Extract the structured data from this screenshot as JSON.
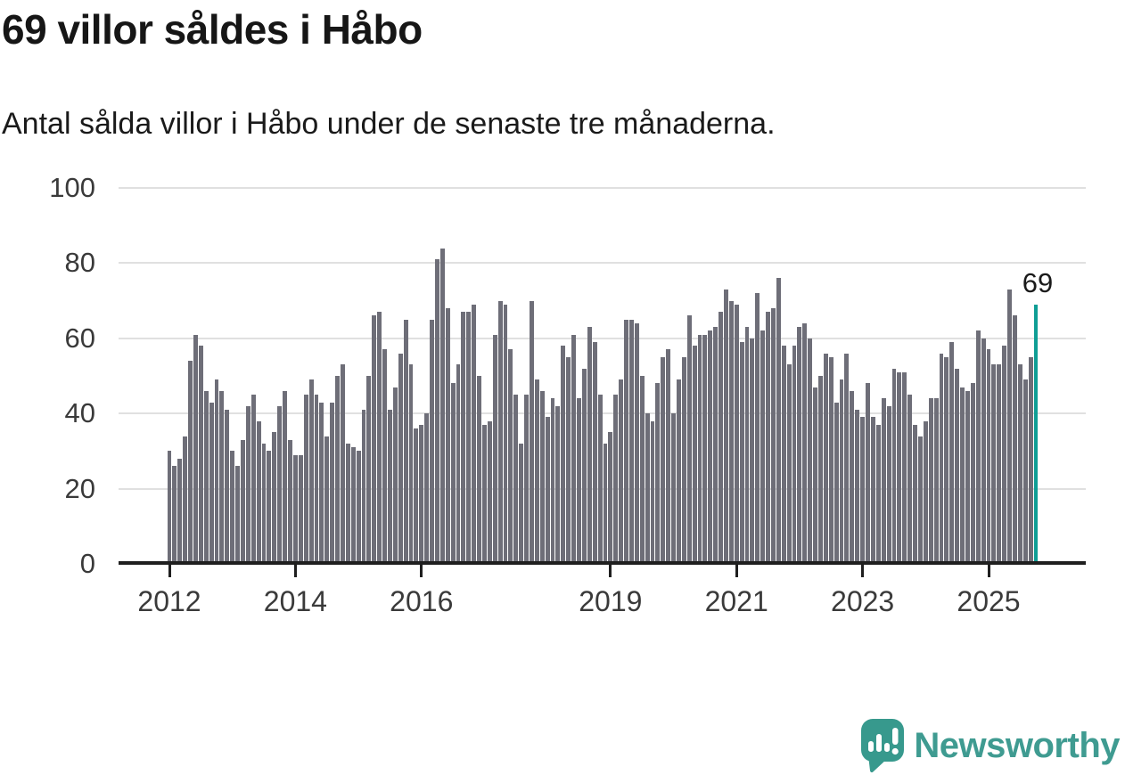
{
  "header": {
    "title": "69 villor såldes i Håbo",
    "subtitle": "Antal sålda villor i Håbo under de senaste tre månaderna."
  },
  "chart_data": {
    "type": "bar",
    "title": "69 villor såldes i Håbo",
    "subtitle": "Antal sålda villor i Håbo under de senaste tre månaderna.",
    "ylabel": "",
    "xlabel": "",
    "ylim": [
      0,
      100
    ],
    "grid": true,
    "y_ticks": [
      0,
      20,
      40,
      60,
      80,
      100
    ],
    "x_ticks": [
      {
        "label": "2012",
        "index": 0
      },
      {
        "label": "2014",
        "index": 24
      },
      {
        "label": "2016",
        "index": 48
      },
      {
        "label": "2019",
        "index": 84
      },
      {
        "label": "2021",
        "index": 108
      },
      {
        "label": "2023",
        "index": 132
      },
      {
        "label": "2025",
        "index": 156
      }
    ],
    "values": [
      30,
      26,
      28,
      34,
      54,
      61,
      58,
      46,
      43,
      49,
      46,
      41,
      30,
      26,
      33,
      42,
      45,
      38,
      32,
      30,
      35,
      42,
      46,
      33,
      29,
      29,
      45,
      49,
      45,
      43,
      34,
      43,
      50,
      53,
      32,
      31,
      30,
      41,
      50,
      66,
      67,
      57,
      41,
      47,
      56,
      65,
      53,
      36,
      37,
      40,
      65,
      81,
      84,
      68,
      48,
      53,
      67,
      67,
      69,
      50,
      37,
      38,
      61,
      70,
      69,
      57,
      45,
      32,
      45,
      70,
      49,
      46,
      39,
      44,
      42,
      58,
      55,
      61,
      44,
      52,
      63,
      59,
      45,
      32,
      35,
      45,
      49,
      65,
      65,
      64,
      50,
      40,
      38,
      48,
      55,
      57,
      40,
      49,
      55,
      66,
      58,
      61,
      61,
      62,
      63,
      67,
      73,
      70,
      69,
      59,
      63,
      60,
      72,
      62,
      67,
      68,
      76,
      58,
      53,
      58,
      63,
      64,
      60,
      47,
      50,
      56,
      55,
      43,
      49,
      56,
      46,
      41,
      39,
      48,
      39,
      37,
      44,
      42,
      52,
      51,
      51,
      45,
      37,
      34,
      38,
      44,
      44,
      56,
      55,
      59,
      52,
      47,
      46,
      48,
      62,
      60,
      57,
      53,
      53,
      58,
      73,
      66,
      53,
      49,
      55,
      69
    ],
    "highlight_index": 165,
    "highlight_value_label": "69",
    "bar_color": "#6e6e78",
    "highlight_color": "#0f9e95",
    "grid_color": "#e0e0e0",
    "axis_color": "#1f1f1f",
    "tick_text_color": "#3a3a3a",
    "legend": []
  },
  "footer": {
    "brand": "Newsworthy",
    "brand_color": "#3f9b91",
    "logo_icon": "newsworthy-speech-bubble-bars-icon"
  }
}
